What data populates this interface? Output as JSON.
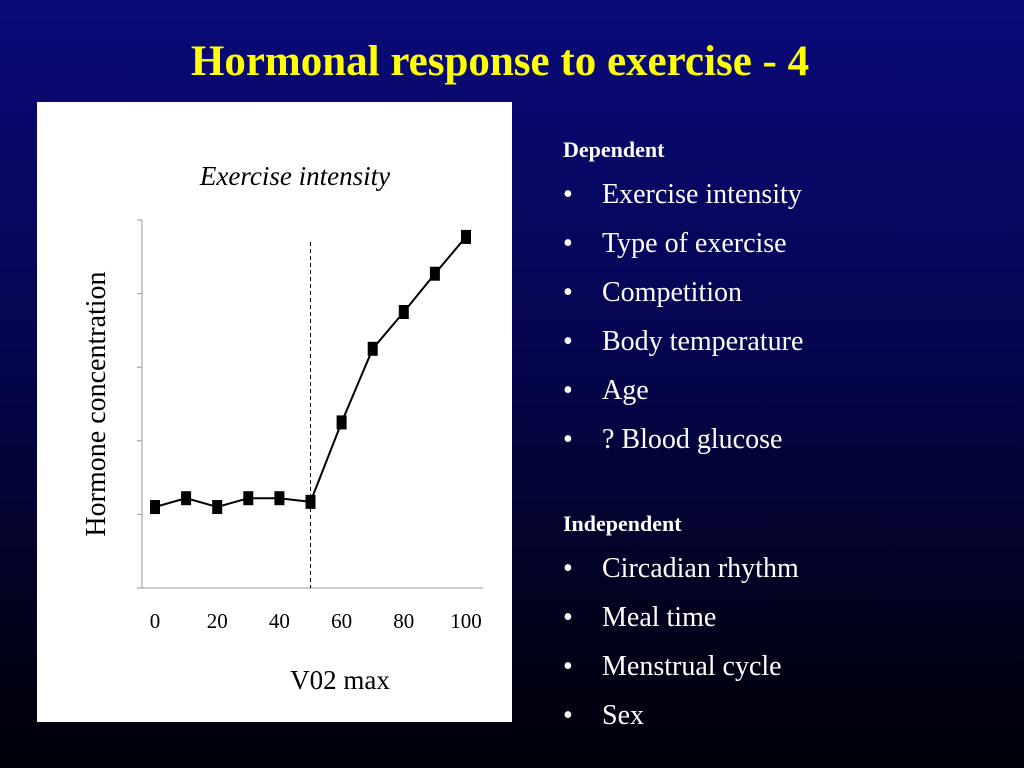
{
  "slide": {
    "title": "Hormonal response to exercise - 4"
  },
  "colors": {
    "title": "#ffff00",
    "text": "#ffffff",
    "chart_line": "#000000",
    "chart_bg": "#ffffff"
  },
  "right_column": {
    "dependent_heading": "Dependent",
    "dependent_items": [
      "Exercise intensity",
      "Type of exercise",
      "Competition",
      "Body temperature",
      "Age",
      "? Blood glucose"
    ],
    "independent_heading": "Independent",
    "independent_items": [
      "Circadian rhythm",
      "Meal time",
      "Menstrual cycle",
      "Sex"
    ],
    "bullet_char": "•"
  },
  "chart_data": {
    "type": "line",
    "title": "Exercise intensity",
    "xlabel": "V02 max",
    "ylabel": "Hormone concentration",
    "x_ticks": [
      "0",
      "20",
      "40",
      "60",
      "80",
      "100"
    ],
    "xlim": [
      0,
      100
    ],
    "ylim": [
      0,
      5
    ],
    "y_tick_count": 5,
    "y_tick_labels_shown": false,
    "grid": false,
    "marker": "square",
    "threshold_line": {
      "x": 50,
      "style": "dashed"
    },
    "series": [
      {
        "x": [
          0,
          10,
          20,
          30,
          40,
          50,
          60,
          70,
          80,
          90,
          100
        ],
        "y": [
          1.1,
          1.22,
          1.1,
          1.22,
          1.22,
          1.17,
          2.25,
          3.25,
          3.75,
          4.27,
          4.77
        ]
      }
    ]
  }
}
